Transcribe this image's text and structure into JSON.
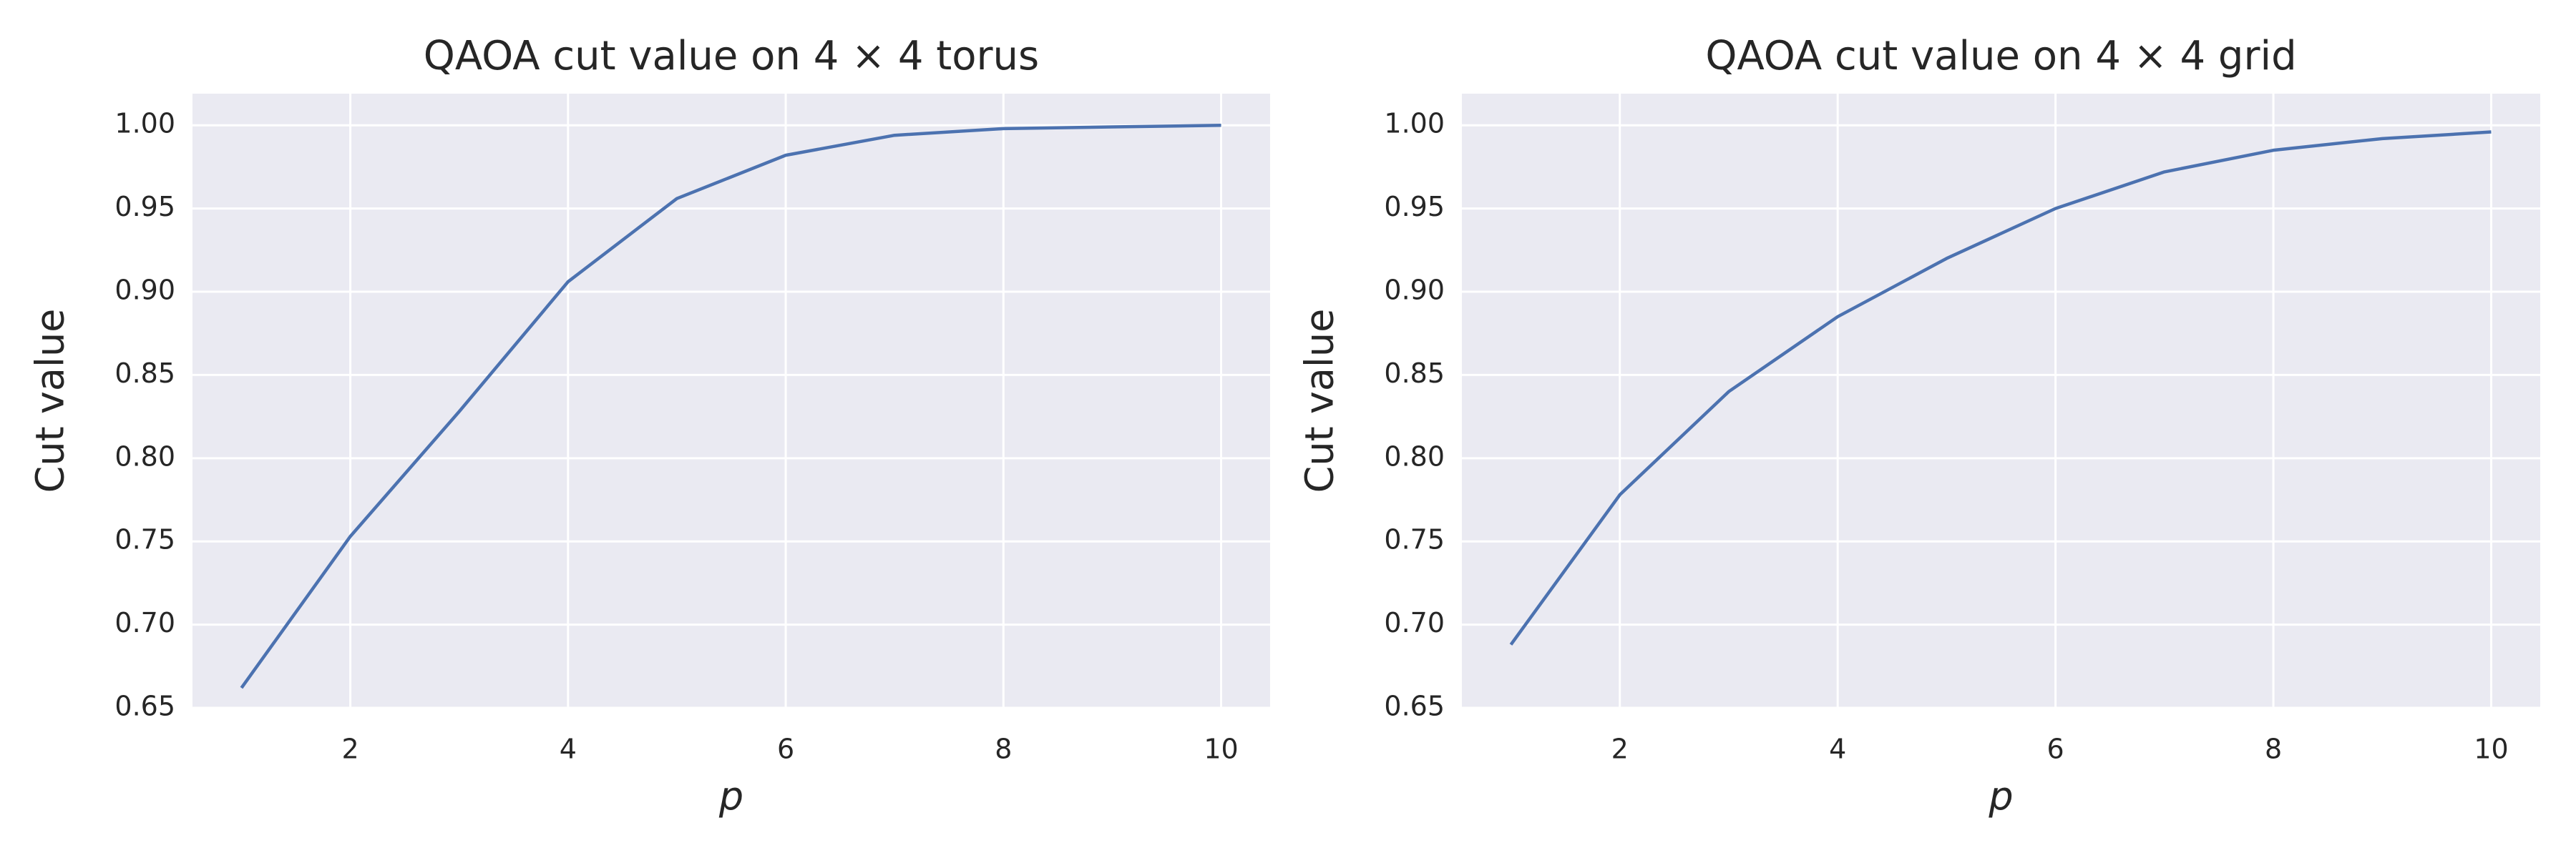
{
  "chart_data": [
    {
      "type": "line",
      "title": "QAOA cut value on 4 × 4 torus",
      "xlabel": "p",
      "ylabel": "Cut value",
      "x": [
        1,
        2,
        3,
        4,
        5,
        6,
        7,
        8,
        9,
        10
      ],
      "values": [
        0.662,
        0.753,
        0.828,
        0.906,
        0.956,
        0.982,
        0.994,
        0.998,
        0.999,
        1.0
      ],
      "color": "#4c72b0",
      "grid": true,
      "xlim": [
        0.55,
        10.45
      ],
      "xticks": [
        2,
        4,
        6,
        8,
        10
      ],
      "ylim": [
        0.65,
        1.019
      ],
      "yticks": [
        0.65,
        {
          "value": 0.7,
          "label": "0.70"
        },
        0.75,
        {
          "value": 0.8,
          "label": "0.80"
        },
        0.85,
        {
          "value": 0.9,
          "label": "0.90"
        },
        0.95,
        {
          "value": 1.0,
          "label": "1.00"
        }
      ]
    },
    {
      "type": "line",
      "title": "QAOA cut value on 4 × 4 grid",
      "xlabel": "p",
      "ylabel": "Cut value",
      "x": [
        1,
        2,
        3,
        4,
        5,
        6,
        7,
        8,
        9,
        10
      ],
      "values": [
        0.688,
        0.778,
        0.84,
        0.885,
        0.92,
        0.95,
        0.972,
        0.985,
        0.992,
        0.996
      ],
      "color": "#4c72b0",
      "grid": true,
      "xlim": [
        0.55,
        10.45
      ],
      "xticks": [
        2,
        4,
        6,
        8,
        10
      ],
      "ylim": [
        0.65,
        1.019
      ],
      "yticks": [
        0.65,
        {
          "value": 0.7,
          "label": "0.70"
        },
        0.75,
        {
          "value": 0.8,
          "label": "0.80"
        },
        0.85,
        {
          "value": 0.9,
          "label": "0.90"
        },
        0.95,
        {
          "value": 1.0,
          "label": "1.00"
        }
      ]
    }
  ]
}
